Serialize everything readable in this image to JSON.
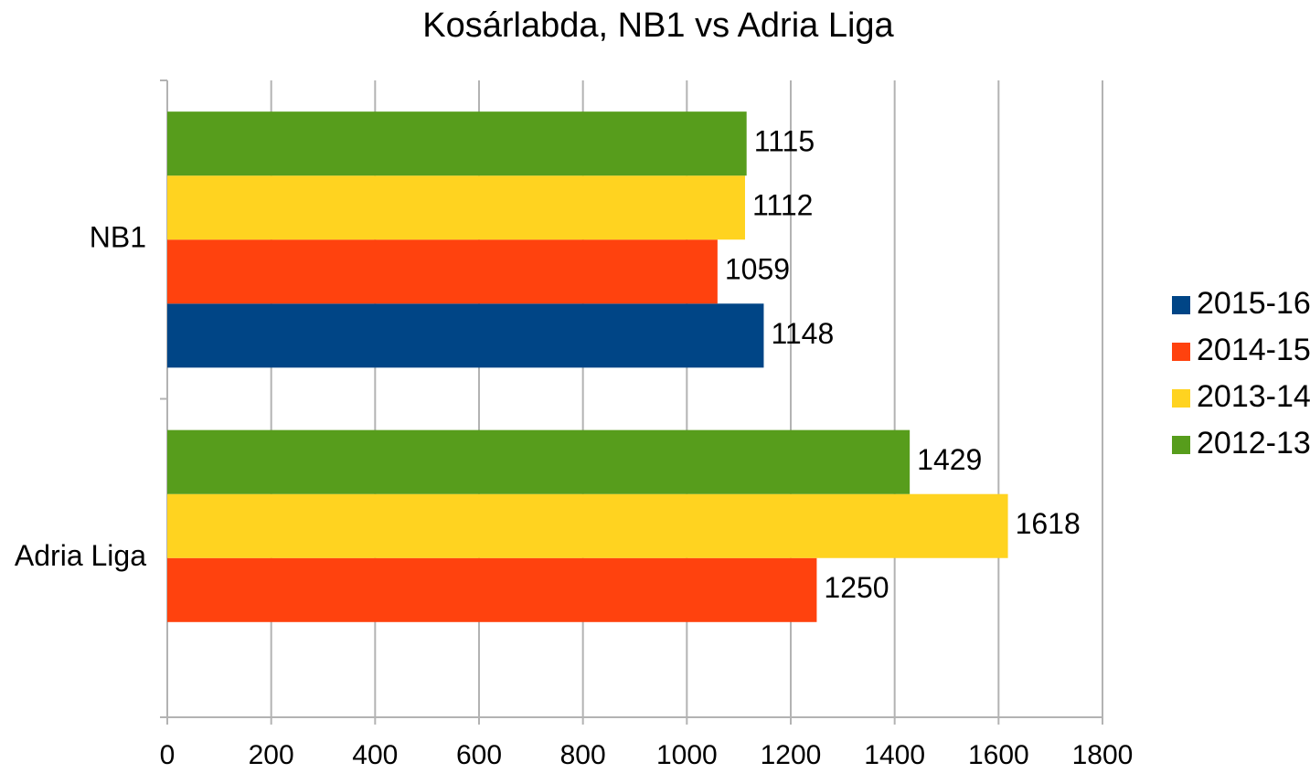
{
  "chart_data": {
    "type": "bar",
    "orientation": "horizontal",
    "title": "Kosárlabda, NB1 vs Adria Liga",
    "categories": [
      "NB1",
      "Adria Liga"
    ],
    "series": [
      {
        "name": "2015-16",
        "color": "#004586",
        "values": [
          1148,
          null
        ]
      },
      {
        "name": "2014-15",
        "color": "#ff420e",
        "values": [
          1059,
          1250
        ]
      },
      {
        "name": "2013-14",
        "color": "#ffd320",
        "values": [
          1112,
          1618
        ]
      },
      {
        "name": "2012-13",
        "color": "#579d1c",
        "values": [
          1115,
          1429
        ]
      }
    ],
    "xlim": [
      0,
      1800
    ],
    "xticks": [
      0,
      200,
      400,
      600,
      800,
      1000,
      1200,
      1400,
      1600,
      1800
    ],
    "grid": true,
    "legend": "right"
  }
}
